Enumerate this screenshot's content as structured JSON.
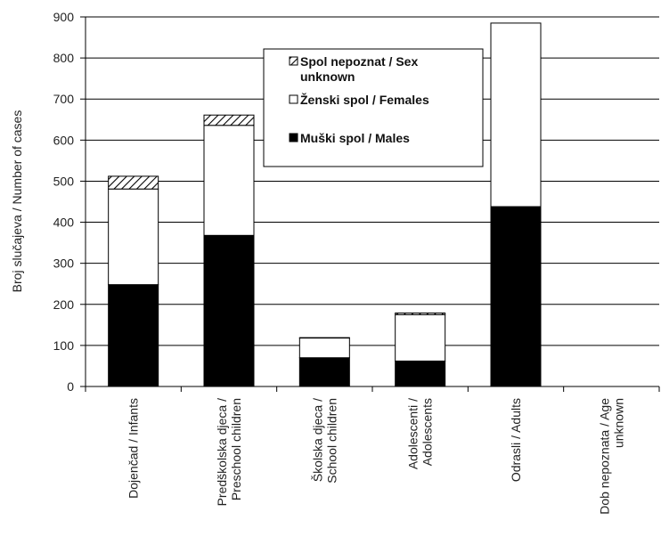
{
  "chart_data": {
    "type": "bar",
    "stacked": true,
    "ylabel": "Broj slučajeva  / Number  of cases",
    "ylim": [
      0,
      900
    ],
    "yticks": [
      0,
      100,
      200,
      300,
      400,
      500,
      600,
      700,
      800,
      900
    ],
    "grid": true,
    "legend_position": "top-center",
    "categories": [
      [
        "Dojenčad / Infants"
      ],
      [
        "Predškolska djeca /",
        "Preschool children"
      ],
      [
        "Školska djeca /",
        "School children"
      ],
      [
        "Adolescenti /",
        "Adolescents"
      ],
      [
        "Odrasli / Adults"
      ],
      [
        "Dob nepoznata /  Age",
        "unknown"
      ]
    ],
    "series": [
      {
        "name": "Muški spol / Males",
        "fill": "#000000",
        "values": [
          248,
          368,
          70,
          62,
          438,
          0
        ]
      },
      {
        "name": "Ženski spol / Females",
        "fill": "#ffffff",
        "values": [
          233,
          268,
          48,
          113,
          447,
          0
        ]
      },
      {
        "name": "Spol nepoznat / Sex unknown",
        "fill": "hatch",
        "values": [
          31,
          25,
          1,
          4,
          0,
          0
        ]
      }
    ],
    "legend_order": [
      2,
      1,
      0
    ],
    "legend_lines": [
      [
        "Spol nepoznat / Sex",
        "unknown"
      ],
      [
        "Ženski spol / Females"
      ],
      [
        "Muški spol / Males"
      ]
    ]
  }
}
